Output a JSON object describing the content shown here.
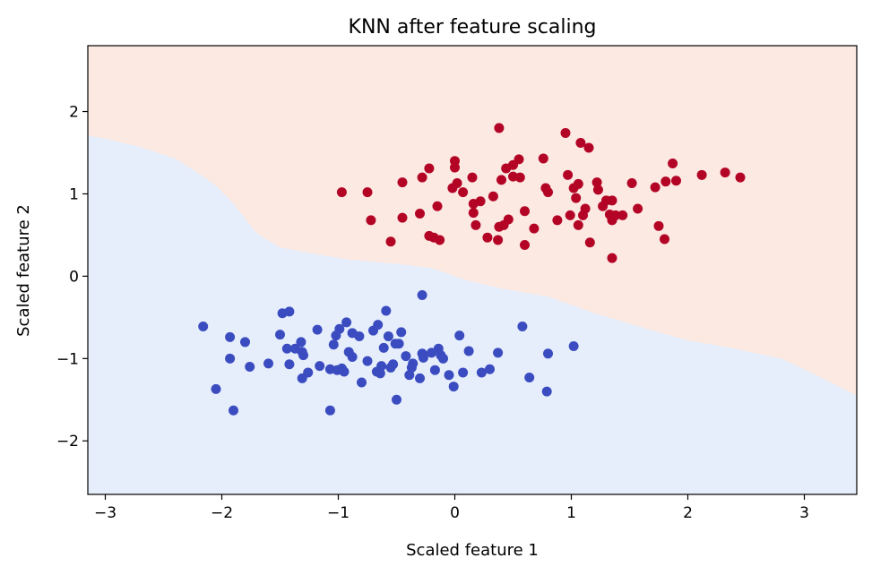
{
  "chart_data": {
    "type": "scatter",
    "title": "KNN after feature scaling",
    "xlabel": "Scaled feature 1",
    "ylabel": "Scaled feature 2",
    "xlim": [
      -3.15,
      3.45
    ],
    "ylim": [
      -2.65,
      2.8
    ],
    "xticks": [
      -3,
      -2,
      -1,
      0,
      1,
      2,
      3
    ],
    "yticks": [
      -2,
      -1,
      0,
      1,
      2
    ],
    "tick_labels_x": [
      "−3",
      "−2",
      "−1",
      "0",
      "1",
      "2",
      "3"
    ],
    "tick_labels_y": [
      "−2",
      "−1",
      "0",
      "1",
      "2"
    ],
    "grid": false,
    "legend": "none",
    "decision_boundary": [
      [
        -3.15,
        1.71
      ],
      [
        -3.0,
        1.67
      ],
      [
        -2.7,
        1.57
      ],
      [
        -2.4,
        1.43
      ],
      [
        -2.2,
        1.25
      ],
      [
        -2.05,
        1.1
      ],
      [
        -1.9,
        0.88
      ],
      [
        -1.7,
        0.52
      ],
      [
        -1.5,
        0.35
      ],
      [
        -1.2,
        0.27
      ],
      [
        -0.9,
        0.2
      ],
      [
        -0.5,
        0.15
      ],
      [
        -0.2,
        0.1
      ],
      [
        0.1,
        -0.05
      ],
      [
        0.4,
        -0.15
      ],
      [
        0.8,
        -0.25
      ],
      [
        1.2,
        -0.45
      ],
      [
        1.6,
        -0.62
      ],
      [
        2.0,
        -0.78
      ],
      [
        2.4,
        -0.88
      ],
      [
        2.8,
        -1.0
      ],
      [
        3.1,
        -1.2
      ],
      [
        3.45,
        -1.45
      ]
    ],
    "region_colors": {
      "upper": "#fbe9e2",
      "lower": "#e6eefc"
    },
    "series": [
      {
        "color": "#b40426",
        "points": [
          [
            -0.97,
            1.02
          ],
          [
            -0.75,
            1.02
          ],
          [
            -0.72,
            0.68
          ],
          [
            -0.55,
            0.42
          ],
          [
            -0.45,
            1.14
          ],
          [
            -0.45,
            0.71
          ],
          [
            -0.3,
            0.76
          ],
          [
            -0.28,
            1.2
          ],
          [
            -0.22,
            1.31
          ],
          [
            -0.22,
            0.49
          ],
          [
            -0.18,
            0.47
          ],
          [
            -0.15,
            0.85
          ],
          [
            -0.13,
            0.44
          ],
          [
            -0.02,
            1.07
          ],
          [
            0.0,
            1.4
          ],
          [
            0.0,
            1.32
          ],
          [
            0.02,
            1.13
          ],
          [
            0.07,
            1.02
          ],
          [
            0.15,
            1.2
          ],
          [
            0.16,
            0.88
          ],
          [
            0.16,
            0.77
          ],
          [
            0.18,
            0.62
          ],
          [
            0.22,
            0.91
          ],
          [
            0.28,
            0.47
          ],
          [
            0.33,
            0.97
          ],
          [
            0.37,
            0.44
          ],
          [
            0.38,
            0.6
          ],
          [
            0.38,
            1.8
          ],
          [
            0.4,
            1.17
          ],
          [
            0.42,
            0.62
          ],
          [
            0.44,
            1.31
          ],
          [
            0.46,
            0.69
          ],
          [
            0.5,
            1.21
          ],
          [
            0.5,
            1.35
          ],
          [
            0.55,
            1.42
          ],
          [
            0.56,
            1.2
          ],
          [
            0.6,
            0.79
          ],
          [
            0.6,
            0.38
          ],
          [
            0.68,
            0.58
          ],
          [
            0.76,
            1.43
          ],
          [
            0.78,
            1.07
          ],
          [
            0.8,
            1.02
          ],
          [
            0.88,
            0.68
          ],
          [
            0.95,
            1.74
          ],
          [
            0.97,
            1.23
          ],
          [
            0.99,
            0.74
          ],
          [
            1.02,
            1.07
          ],
          [
            1.04,
            0.95
          ],
          [
            1.06,
            1.12
          ],
          [
            1.06,
            0.62
          ],
          [
            1.08,
            1.62
          ],
          [
            1.1,
            0.74
          ],
          [
            1.12,
            0.82
          ],
          [
            1.15,
            1.56
          ],
          [
            1.16,
            0.41
          ],
          [
            1.22,
            1.14
          ],
          [
            1.23,
            1.05
          ],
          [
            1.27,
            0.85
          ],
          [
            1.3,
            0.92
          ],
          [
            1.33,
            0.75
          ],
          [
            1.35,
            0.92
          ],
          [
            1.35,
            0.68
          ],
          [
            1.35,
            0.22
          ],
          [
            1.38,
            0.74
          ],
          [
            1.44,
            0.74
          ],
          [
            1.52,
            1.13
          ],
          [
            1.57,
            0.82
          ],
          [
            1.72,
            1.08
          ],
          [
            1.75,
            0.61
          ],
          [
            1.8,
            0.45
          ],
          [
            1.81,
            1.15
          ],
          [
            1.87,
            1.37
          ],
          [
            1.9,
            1.16
          ],
          [
            2.12,
            1.23
          ],
          [
            2.32,
            1.26
          ],
          [
            2.45,
            1.2
          ]
        ]
      },
      {
        "color": "#3b4cc0",
        "points": [
          [
            -2.16,
            -0.61
          ],
          [
            -2.05,
            -1.37
          ],
          [
            -1.93,
            -0.74
          ],
          [
            -1.93,
            -1.0
          ],
          [
            -1.9,
            -1.63
          ],
          [
            -1.8,
            -0.8
          ],
          [
            -1.76,
            -1.1
          ],
          [
            -1.6,
            -1.06
          ],
          [
            -1.5,
            -0.71
          ],
          [
            -1.48,
            -0.45
          ],
          [
            -1.44,
            -0.88
          ],
          [
            -1.42,
            -0.43
          ],
          [
            -1.42,
            -1.07
          ],
          [
            -1.37,
            -0.88
          ],
          [
            -1.32,
            -0.8
          ],
          [
            -1.31,
            -0.92
          ],
          [
            -1.3,
            -0.96
          ],
          [
            -1.31,
            -1.24
          ],
          [
            -1.26,
            -1.17
          ],
          [
            -1.18,
            -0.65
          ],
          [
            -1.16,
            -1.09
          ],
          [
            -1.07,
            -1.63
          ],
          [
            -1.07,
            -1.13
          ],
          [
            -1.04,
            -0.83
          ],
          [
            -1.02,
            -0.72
          ],
          [
            -1.01,
            -1.14
          ],
          [
            -0.99,
            -0.64
          ],
          [
            -0.97,
            -1.12
          ],
          [
            -0.95,
            -1.16
          ],
          [
            -0.93,
            -0.56
          ],
          [
            -0.91,
            -0.92
          ],
          [
            -0.88,
            -0.69
          ],
          [
            -0.88,
            -0.98
          ],
          [
            -0.82,
            -0.73
          ],
          [
            -0.8,
            -1.29
          ],
          [
            -0.75,
            -1.03
          ],
          [
            -0.7,
            -0.66
          ],
          [
            -0.67,
            -1.16
          ],
          [
            -0.66,
            -0.59
          ],
          [
            -0.64,
            -1.18
          ],
          [
            -0.63,
            -1.09
          ],
          [
            -0.61,
            -0.87
          ],
          [
            -0.59,
            -0.42
          ],
          [
            -0.57,
            -0.73
          ],
          [
            -0.55,
            -1.11
          ],
          [
            -0.53,
            -1.07
          ],
          [
            -0.51,
            -0.82
          ],
          [
            -0.5,
            -1.5
          ],
          [
            -0.48,
            -0.82
          ],
          [
            -0.46,
            -0.68
          ],
          [
            -0.42,
            -0.97
          ],
          [
            -0.39,
            -1.2
          ],
          [
            -0.37,
            -1.11
          ],
          [
            -0.36,
            -1.06
          ],
          [
            -0.3,
            -1.24
          ],
          [
            -0.28,
            -0.23
          ],
          [
            -0.28,
            -0.94
          ],
          [
            -0.27,
            -0.99
          ],
          [
            -0.2,
            -0.93
          ],
          [
            -0.17,
            -1.14
          ],
          [
            -0.14,
            -0.88
          ],
          [
            -0.12,
            -0.96
          ],
          [
            -0.1,
            -1.0
          ],
          [
            -0.05,
            -1.2
          ],
          [
            -0.01,
            -1.34
          ],
          [
            0.04,
            -0.72
          ],
          [
            0.07,
            -1.17
          ],
          [
            0.12,
            -0.91
          ],
          [
            0.23,
            -1.17
          ],
          [
            0.3,
            -1.13
          ],
          [
            0.37,
            -0.93
          ],
          [
            0.58,
            -0.61
          ],
          [
            0.64,
            -1.23
          ],
          [
            0.79,
            -1.4
          ],
          [
            0.8,
            -0.94
          ],
          [
            1.02,
            -0.85
          ]
        ]
      }
    ]
  }
}
